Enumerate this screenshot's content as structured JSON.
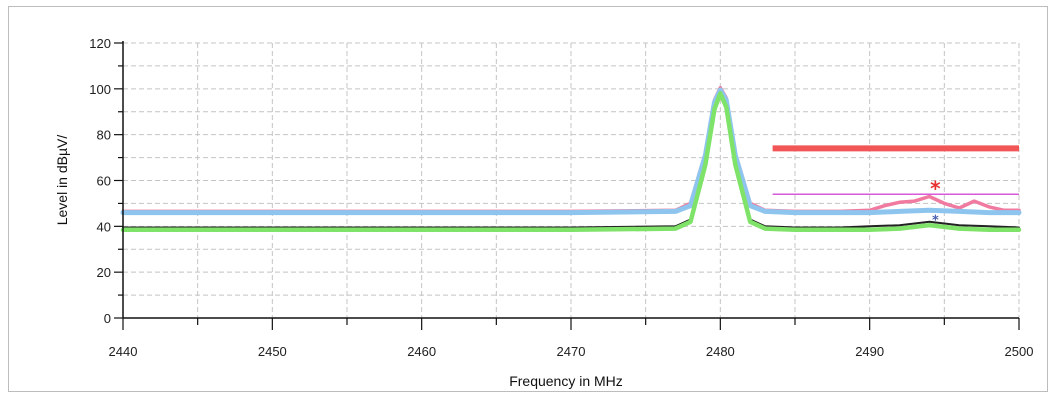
{
  "chart_data": {
    "type": "line",
    "title": "",
    "xlabel": "Frequency in MHz",
    "ylabel": "Level in dBµV/",
    "xlim": [
      2440,
      2500
    ],
    "ylim": [
      0,
      120
    ],
    "xticks": [
      2440,
      2450,
      2460,
      2470,
      2480,
      2490,
      2500
    ],
    "yticks": [
      0,
      20,
      40,
      60,
      80,
      100,
      120
    ],
    "x_tick_labels": [
      "2440",
      "2450",
      "2460",
      "2470",
      "2480",
      "2490",
      "2500"
    ],
    "y_tick_labels": [
      "0",
      "20",
      "40",
      "60",
      "80",
      "100",
      "120"
    ],
    "grid": true,
    "grid_style": "dashed",
    "series": [
      {
        "color": "#f07aa0",
        "x": [
          2440,
          2450,
          2460,
          2470,
          2477,
          2478,
          2479,
          2479.6,
          2480,
          2480.4,
          2481,
          2482,
          2483,
          2485,
          2488,
          2490,
          2491,
          2492,
          2493,
          2494,
          2495,
          2496,
          2497,
          2498,
          2499,
          2500
        ],
        "values": [
          46.5,
          46.5,
          46.5,
          46.5,
          47,
          50,
          72,
          95,
          100.5,
          96,
          72,
          50,
          47,
          46.5,
          46.5,
          47,
          49,
          50.5,
          51,
          53,
          50,
          48,
          51,
          48.5,
          47,
          47
        ]
      },
      {
        "color": "#8ec5ee",
        "x": [
          2440,
          2450,
          2460,
          2470,
          2477,
          2478,
          2479,
          2479.6,
          2480,
          2480.4,
          2481,
          2482,
          2483,
          2485,
          2488,
          2490,
          2492,
          2494,
          2496,
          2498,
          2500
        ],
        "values": [
          46,
          46,
          46,
          46,
          46.5,
          49,
          71,
          94,
          99.5,
          95,
          71,
          49,
          46.5,
          46,
          46,
          46,
          46.5,
          47,
          46.5,
          46,
          46
        ]
      },
      {
        "color": "#222222",
        "x": [
          2440,
          2450,
          2460,
          2470,
          2477,
          2478,
          2479,
          2479.6,
          2480,
          2480.4,
          2481,
          2482,
          2483,
          2485,
          2488,
          2490,
          2492,
          2494,
          2496,
          2498,
          2500
        ],
        "values": [
          39.5,
          39.5,
          39.5,
          39.5,
          40,
          43,
          68,
          92,
          98.5,
          93,
          68,
          43,
          40,
          39.5,
          39.5,
          40,
          40.5,
          42,
          40.5,
          40,
          39.5
        ]
      },
      {
        "color": "#7fe36a",
        "x": [
          2440,
          2450,
          2460,
          2470,
          2477,
          2478,
          2479,
          2479.6,
          2480,
          2480.4,
          2481,
          2482,
          2483,
          2485,
          2488,
          2490,
          2492,
          2494,
          2496,
          2498,
          2500
        ],
        "values": [
          38.5,
          38.5,
          38.5,
          38.5,
          39,
          42,
          67,
          91,
          98,
          92,
          67,
          42,
          39,
          38.5,
          38.5,
          38.5,
          39,
          40.5,
          39,
          38.5,
          38.5
        ]
      }
    ],
    "limit_lines": [
      {
        "color": "#f25555",
        "x": [
          2483.5,
          2500
        ],
        "y": 74
      },
      {
        "color": "#d85ad8",
        "x": [
          2483.5,
          2500
        ],
        "y": 54
      }
    ],
    "markers": [
      {
        "symbol": "*",
        "color": "#e83030",
        "x": 2494.4,
        "y": 57
      },
      {
        "symbol": "*",
        "color": "#4a5fb0",
        "x": 2494.4,
        "y": 43
      }
    ]
  }
}
